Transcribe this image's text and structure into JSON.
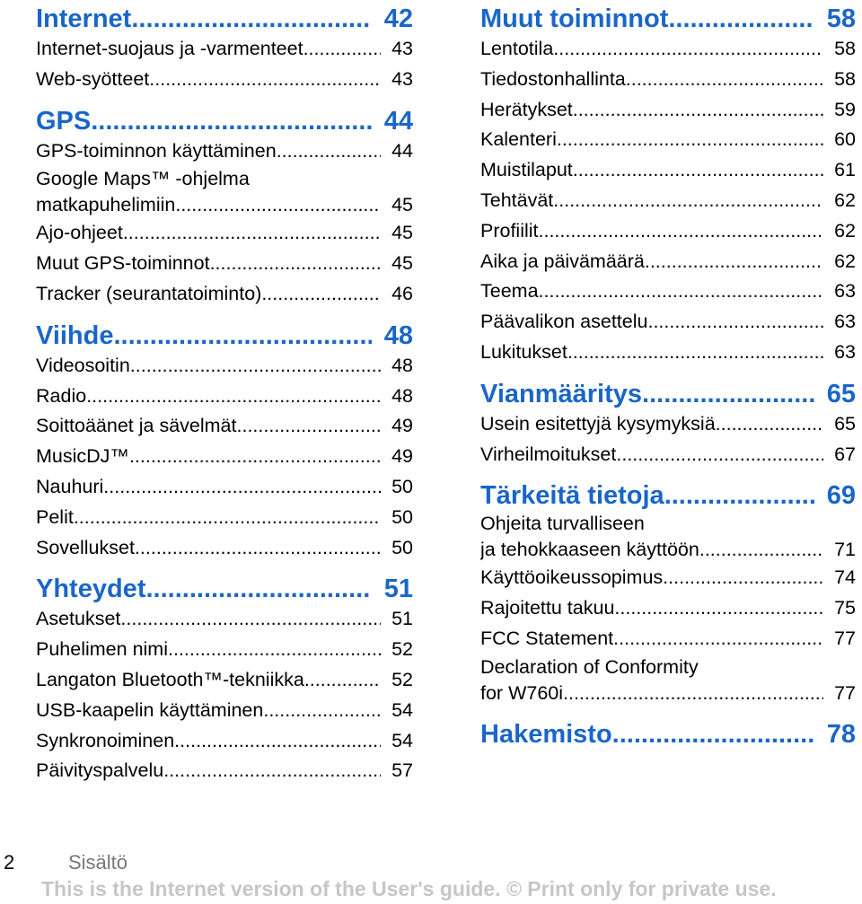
{
  "left_column": [
    {
      "title": "Internet",
      "page": "42",
      "items": [
        {
          "label": "Internet-suojaus ja -varmenteet",
          "page": "43"
        },
        {
          "label": "Web-syötteet",
          "page": "43"
        }
      ]
    },
    {
      "title": "GPS",
      "page": "44",
      "items": [
        {
          "label": "GPS-toiminnon käyttäminen",
          "page": "44"
        },
        {
          "label_line1": "Google Maps™ -ohjelma",
          "label": "matkapuhelimiin",
          "page": "45"
        },
        {
          "label": "Ajo-ohjeet",
          "page": "45"
        },
        {
          "label": "Muut GPS-toiminnot",
          "page": "45"
        },
        {
          "label": "Tracker (seurantatoiminto)",
          "page": "46"
        }
      ]
    },
    {
      "title": "Viihde",
      "page": "48",
      "items": [
        {
          "label": "Videosoitin",
          "page": "48"
        },
        {
          "label": "Radio",
          "page": "48"
        },
        {
          "label": "Soittoäänet ja sävelmät",
          "page": "49"
        },
        {
          "label": "MusicDJ™",
          "page": "49"
        },
        {
          "label": "Nauhuri",
          "page": "50"
        },
        {
          "label": "Pelit",
          "page": "50"
        },
        {
          "label": "Sovellukset",
          "page": "50"
        }
      ]
    },
    {
      "title": "Yhteydet",
      "page": "51",
      "items": [
        {
          "label": "Asetukset",
          "page": "51"
        },
        {
          "label": "Puhelimen nimi",
          "page": "52"
        },
        {
          "label": "Langaton Bluetooth™-tekniikka",
          "page": "52"
        },
        {
          "label": "USB-kaapelin käyttäminen",
          "page": "54"
        },
        {
          "label": "Synkronoiminen",
          "page": "54"
        },
        {
          "label": "Päivityspalvelu",
          "page": "57"
        }
      ]
    }
  ],
  "right_column": [
    {
      "title": "Muut toiminnot",
      "page": "58",
      "items": [
        {
          "label": "Lentotila",
          "page": "58"
        },
        {
          "label": "Tiedostonhallinta",
          "page": "58"
        },
        {
          "label": "Herätykset",
          "page": "59"
        },
        {
          "label": "Kalenteri",
          "page": "60"
        },
        {
          "label": "Muistilaput",
          "page": "61"
        },
        {
          "label": "Tehtävät",
          "page": "62"
        },
        {
          "label": "Profiilit",
          "page": "62"
        },
        {
          "label": "Aika ja päivämäärä",
          "page": "62"
        },
        {
          "label": "Teema",
          "page": "63"
        },
        {
          "label": "Päävalikon asettelu",
          "page": "63"
        },
        {
          "label": "Lukitukset",
          "page": "63"
        }
      ]
    },
    {
      "title": "Vianmääritys",
      "page": "65",
      "items": [
        {
          "label": "Usein esitettyjä kysymyksiä",
          "page": "65"
        },
        {
          "label": "Virheilmoitukset",
          "page": "67"
        }
      ]
    },
    {
      "title": "Tärkeitä tietoja",
      "page": "69",
      "items": [
        {
          "label_line1": "Ohjeita turvalliseen",
          "label": "ja tehokkaaseen käyttöön",
          "page": "71"
        },
        {
          "label": "Käyttöoikeussopimus",
          "page": "74"
        },
        {
          "label": "Rajoitettu takuu",
          "page": "75"
        },
        {
          "label": "FCC Statement",
          "page": "77"
        },
        {
          "label_line1": "Declaration of Conformity",
          "label": "for W760i",
          "page": "77"
        }
      ]
    },
    {
      "title": "Hakemisto",
      "page": "78",
      "items": []
    }
  ],
  "footer": {
    "page_number": "2",
    "section": "Sisältö"
  },
  "watermark": "This is the Internet version of the User's guide. © Print only for private use.",
  "colors": {
    "heading": "#1a66c8",
    "text": "#000000",
    "footer_label": "#777777",
    "watermark": "#c6c6c6"
  }
}
